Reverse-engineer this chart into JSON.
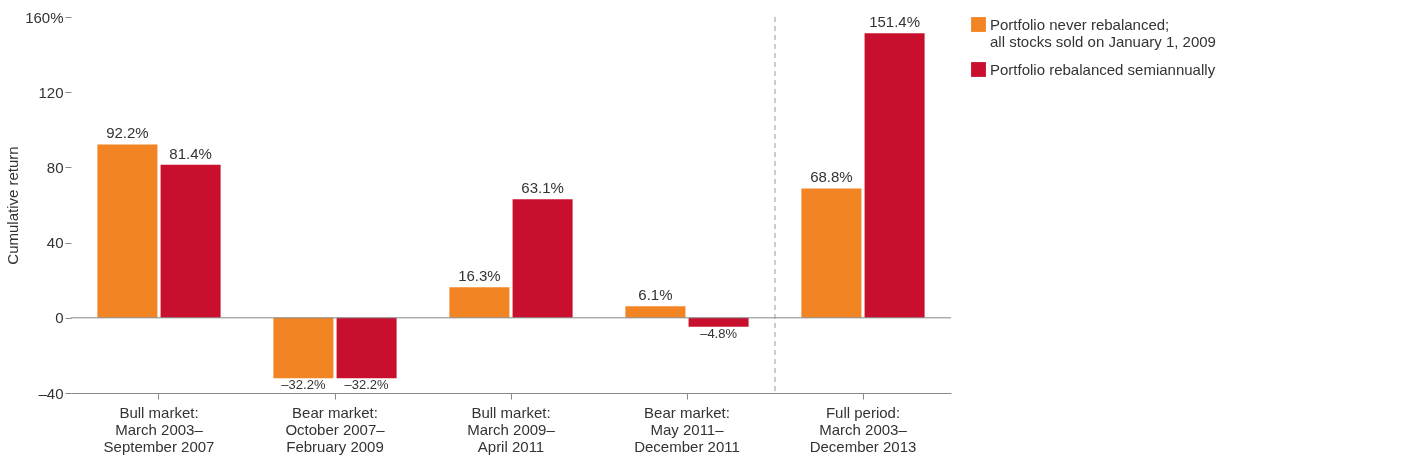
{
  "chart_data": {
    "type": "bar",
    "ylabel": "Cumulative return",
    "categories": [
      "Bull market:\nMarch 2003–\nSeptember 2007",
      "Bear market:\nOctober 2007–\nFebruary 2009",
      "Bull market:\nMarch 2009–\nApril 2011",
      "Bear market:\nMay 2011–\nDecember 2011",
      "Full period:\nMarch 2003–\nDecember 2013"
    ],
    "series": [
      {
        "name": "Portfolio never rebalanced;\nall stocks sold on January 1, 2009",
        "color": "#f28423",
        "values": [
          92.2,
          -32.2,
          16.3,
          6.1,
          68.8
        ],
        "value_labels": [
          "92.2%",
          "–32.2%",
          "16.3%",
          "6.1%",
          "68.8%"
        ]
      },
      {
        "name": "Portfolio rebalanced semiannually",
        "color": "#c8102e",
        "values": [
          81.4,
          -32.2,
          63.1,
          -4.8,
          151.4
        ],
        "value_labels": [
          "81.4%",
          "–32.2%",
          "63.1%",
          "–4.8%",
          "151.4%"
        ]
      }
    ],
    "ylim": [
      -40,
      160
    ],
    "yticks": [
      {
        "value": -40,
        "label": "–40"
      },
      0,
      40,
      80,
      120,
      {
        "value": 160,
        "label": "160%"
      }
    ],
    "ref_lines": [
      {
        "axis": "y",
        "value": 0,
        "color": "#888888",
        "line_style": "solid"
      },
      {
        "axis": "x",
        "value": "Full period:\nMarch 2003–\nDecember 2013",
        "color": "#999999",
        "line_style": "dashed"
      }
    ],
    "grid": false,
    "legend": "top right"
  }
}
